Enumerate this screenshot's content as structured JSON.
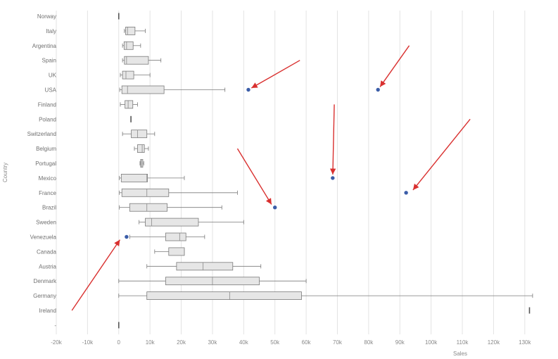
{
  "chart_data": {
    "type": "boxplot",
    "title": "",
    "xlabel": "Sales",
    "ylabel": "Country",
    "xlim": [
      -20000,
      135000
    ],
    "x_ticks": [
      -20000,
      -10000,
      0,
      10000,
      20000,
      30000,
      40000,
      50000,
      60000,
      70000,
      80000,
      90000,
      100000,
      110000,
      120000,
      130000
    ],
    "x_tick_labels": [
      "-20k",
      "-10k",
      "0",
      "10k",
      "20k",
      "30k",
      "40k",
      "50k",
      "60k",
      "70k",
      "80k",
      "90k",
      "100k",
      "110k",
      "120k",
      "130k"
    ],
    "grid": "vertical",
    "colors": {
      "box_fill": "#e6e6e6",
      "box_stroke": "#7a7a7a",
      "outlier": "#3b5da8",
      "arrow": "#d9302f",
      "grid": "#e3e3e3"
    },
    "categories": [
      "Norway",
      "Italy",
      "Argentina",
      "Spain",
      "UK",
      "USA",
      "Finland",
      "Poland",
      "Switzerland",
      "Belgium",
      "Portugal",
      "Mexico",
      "France",
      "Brazil",
      "Sweden",
      "Venezuela",
      "Canada",
      "Austria",
      "Denmark",
      "Germany",
      "Ireland",
      "-"
    ],
    "boxes": [
      {
        "category": "Norway",
        "min": 0,
        "q1": 0,
        "median": 0,
        "q3": 0,
        "max": 0
      },
      {
        "category": "Italy",
        "min": 1800,
        "q1": 2200,
        "median": 2800,
        "q3": 5200,
        "max": 8500
      },
      {
        "category": "Argentina",
        "min": 1200,
        "q1": 1700,
        "median": 2500,
        "q3": 4600,
        "max": 7000
      },
      {
        "category": "Spain",
        "min": 1200,
        "q1": 1800,
        "median": 2500,
        "q3": 9500,
        "max": 13500
      },
      {
        "category": "UK",
        "min": 500,
        "q1": 1200,
        "median": 2300,
        "q3": 4800,
        "max": 10000
      },
      {
        "category": "USA",
        "min": 300,
        "q1": 1000,
        "median": 2800,
        "q3": 14500,
        "max": 34000
      },
      {
        "category": "Finland",
        "min": 500,
        "q1": 2000,
        "median": 3000,
        "q3": 4500,
        "max": 6000
      },
      {
        "category": "Poland",
        "min": 3900,
        "q1": 3900,
        "median": 3900,
        "q3": 3900,
        "max": 3900
      },
      {
        "category": "Switzerland",
        "min": 1200,
        "q1": 4000,
        "median": 6000,
        "q3": 9000,
        "max": 11500
      },
      {
        "category": "Belgium",
        "min": 5000,
        "q1": 6000,
        "median": 7500,
        "q3": 8200,
        "max": 9500
      },
      {
        "category": "Portugal",
        "min": 6800,
        "q1": 7000,
        "median": 7300,
        "q3": 7700,
        "max": 8000
      },
      {
        "category": "Mexico",
        "min": 200,
        "q1": 800,
        "median": 9000,
        "q3": 9200,
        "max": 21000
      },
      {
        "category": "France",
        "min": 200,
        "q1": 1000,
        "median": 9000,
        "q3": 16000,
        "max": 38000
      },
      {
        "category": "Brazil",
        "min": 200,
        "q1": 3500,
        "median": 9000,
        "q3": 15500,
        "max": 33000
      },
      {
        "category": "Sweden",
        "min": 6500,
        "q1": 8500,
        "median": 10500,
        "q3": 25500,
        "max": 40000
      },
      {
        "category": "Venezuela",
        "min": 3500,
        "q1": 15000,
        "median": 19500,
        "q3": 21500,
        "max": 27500
      },
      {
        "category": "Canada",
        "min": 11500,
        "q1": 16000,
        "median": 21000,
        "q3": 21000,
        "max": 21000
      },
      {
        "category": "Austria",
        "min": 9000,
        "q1": 18500,
        "median": 27000,
        "q3": 36500,
        "max": 45500
      },
      {
        "category": "Denmark",
        "min": 0,
        "q1": 15000,
        "median": 30000,
        "q3": 45000,
        "max": 60000
      },
      {
        "category": "Germany",
        "min": 0,
        "q1": 9000,
        "median": 35500,
        "q3": 58500,
        "max": 132500
      },
      {
        "category": "Ireland",
        "min": 131500,
        "q1": 131500,
        "median": 131500,
        "q3": 131500,
        "max": 131500
      },
      {
        "category": "-",
        "min": 0,
        "q1": 0,
        "median": 0,
        "q3": 0,
        "max": 0
      }
    ],
    "outliers": [
      {
        "category": "USA",
        "x": 41500
      },
      {
        "category": "USA",
        "x": 83000
      },
      {
        "category": "Mexico",
        "x": 68500
      },
      {
        "category": "France",
        "x": 92000
      },
      {
        "category": "Brazil",
        "x": 50000
      },
      {
        "category": "Venezuela",
        "x": 2500
      }
    ],
    "annotations": [
      {
        "kind": "arrow",
        "category": "USA",
        "points_to_x": 41500,
        "from_x": 58000,
        "from_category": "Spain"
      },
      {
        "kind": "arrow",
        "category": "USA",
        "points_to_x": 83000,
        "from_x": 93000,
        "from_category": "Argentina"
      },
      {
        "kind": "arrow",
        "category": "Mexico",
        "points_to_x": 68500,
        "from_x": 69000,
        "from_category": "Finland"
      },
      {
        "kind": "arrow",
        "category": "France",
        "points_to_x": 93500,
        "from_x": 112500,
        "from_category": "Poland"
      },
      {
        "kind": "arrow",
        "category": "Brazil",
        "points_to_x": 49500,
        "from_x": 38000,
        "from_category": "Belgium"
      },
      {
        "kind": "arrow",
        "category": "Venezuela",
        "points_to_x": 1000,
        "from_x": -15000,
        "from_category": "Ireland"
      }
    ]
  }
}
